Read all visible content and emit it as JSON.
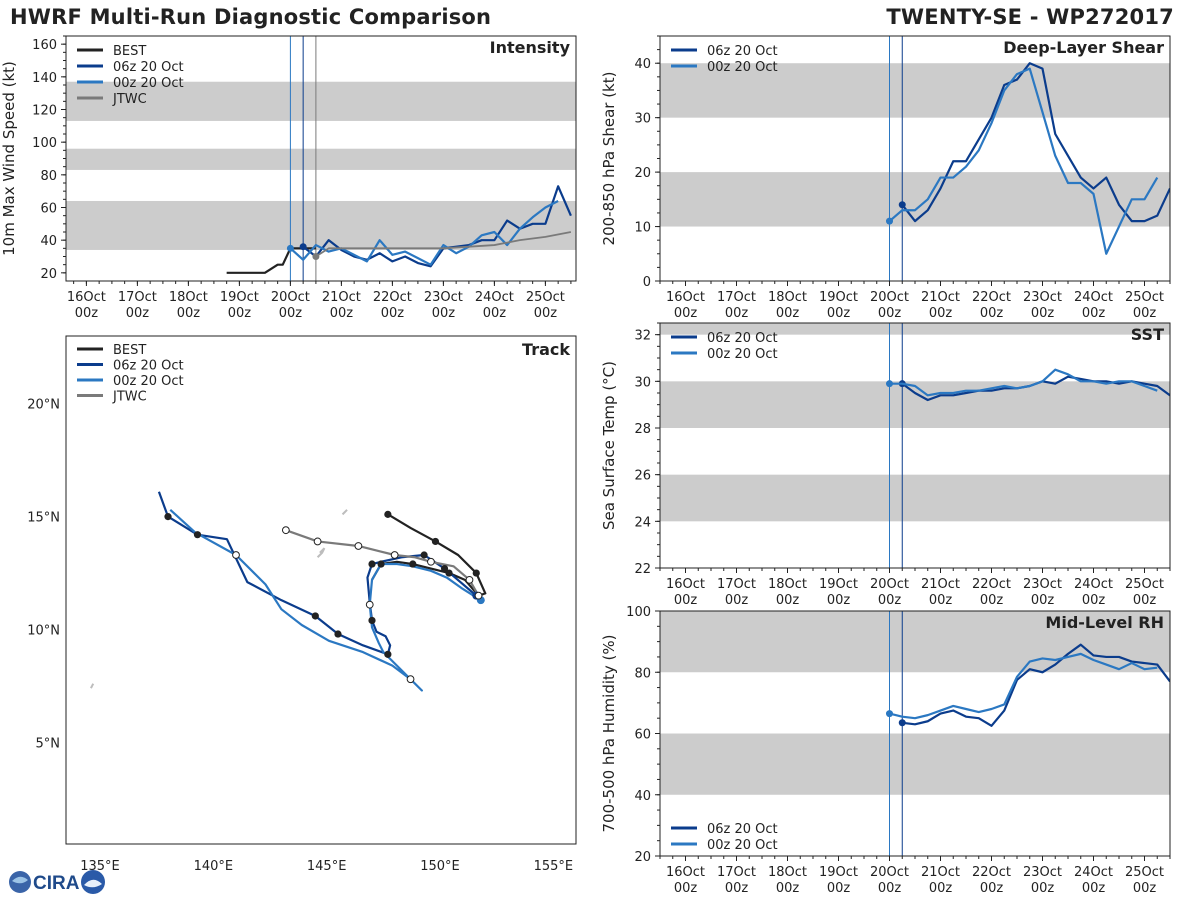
{
  "header": {
    "title_left": "HWRF Multi-Run Diagnostic Comparison",
    "title_right": "TWENTY-SE - WP272017",
    "logo_text": "CIRA"
  },
  "colors": {
    "best": "#222222",
    "run_06z": "#0b3c8c",
    "run_00z": "#2b78c2",
    "jtwc": "#7a7a7a",
    "band": "#cccccc",
    "land": "#bdbdbd"
  },
  "chart_data": [
    {
      "id": "intensity",
      "type": "line",
      "title": "Intensity",
      "ylabel": "10m Max Wind Speed (kt)",
      "xlim": [
        -0.4,
        9.6
      ],
      "ylim": [
        15,
        165
      ],
      "yticks": [
        20,
        40,
        60,
        80,
        100,
        120,
        140,
        160
      ],
      "xtick_positions": [
        0,
        1,
        2,
        3,
        4,
        5,
        6,
        7,
        8,
        9
      ],
      "xticks": [
        "16Oct\n00z",
        "17Oct\n00z",
        "18Oct\n00z",
        "19Oct\n00z",
        "20Oct\n00z",
        "21Oct\n00z",
        "22Oct\n00z",
        "23Oct\n00z",
        "24Oct\n00z",
        "25Oct\n00z"
      ],
      "bands": [
        [
          34,
          64
        ],
        [
          83,
          96
        ],
        [
          113,
          137
        ]
      ],
      "vlines": [
        {
          "x": 4.0,
          "series": "00z 20 Oct"
        },
        {
          "x": 4.25,
          "series": "06z 20 Oct"
        },
        {
          "x": 4.5,
          "series": "JTWC"
        }
      ],
      "legend": [
        "BEST",
        "06z 20 Oct",
        "00z 20 Oct",
        "JTWC"
      ],
      "series": [
        {
          "name": "BEST",
          "x": [
            2.75,
            3.0,
            3.25,
            3.5,
            3.75,
            3.85,
            4.0,
            4.25,
            4.5
          ],
          "values": [
            20,
            20,
            20,
            20,
            25,
            25,
            35,
            35,
            35
          ]
        },
        {
          "name": "06z 20 Oct",
          "x": [
            4.25,
            4.5,
            4.75,
            5.0,
            5.25,
            5.5,
            5.75,
            6.0,
            6.25,
            6.5,
            6.75,
            7.0,
            7.25,
            7.5,
            7.75,
            8.0,
            8.25,
            8.5,
            8.75,
            9.0,
            9.25,
            9.5
          ],
          "values": [
            36,
            30,
            40,
            34,
            30,
            28,
            32,
            27,
            30,
            26,
            24,
            35,
            36,
            37,
            40,
            40,
            52,
            47,
            50,
            50,
            73,
            55
          ]
        },
        {
          "name": "00z 20 Oct",
          "x": [
            4.0,
            4.25,
            4.5,
            4.75,
            5.0,
            5.25,
            5.5,
            5.75,
            6.0,
            6.25,
            6.5,
            6.75,
            7.0,
            7.25,
            7.5,
            7.75,
            8.0,
            8.25,
            8.5,
            8.75,
            9.0,
            9.25
          ],
          "values": [
            35,
            28,
            37,
            33,
            35,
            31,
            27,
            40,
            31,
            33,
            29,
            25,
            37,
            32,
            36,
            43,
            45,
            37,
            47,
            54,
            60,
            64
          ]
        },
        {
          "name": "JTWC",
          "x": [
            4.5,
            4.75,
            5.0,
            7.0,
            7.5,
            8.0,
            8.5,
            9.0,
            9.5
          ],
          "values": [
            30,
            35,
            35,
            35,
            36,
            37,
            40,
            42,
            45
          ]
        }
      ]
    },
    {
      "id": "track",
      "type": "scatter",
      "title": "Track",
      "xlim": [
        133.5,
        156
      ],
      "ylim": [
        0.5,
        23
      ],
      "xticks": [
        135,
        140,
        145,
        150,
        155
      ],
      "xtick_labels": [
        "135°E",
        "140°E",
        "145°E",
        "150°E",
        "155°E"
      ],
      "yticks": [
        5,
        10,
        15,
        20
      ],
      "ytick_labels": [
        "5°N",
        "10°N",
        "15°N",
        "20°N"
      ],
      "legend": [
        "BEST",
        "06z 20 Oct",
        "00z 20 Oct",
        "JTWC"
      ],
      "series": [
        {
          "name": "BEST",
          "lon": [
            147.7,
            148.7,
            149.8,
            150.8,
            151.6,
            152.0,
            151.7,
            151.1,
            150.4,
            149.6,
            148.8,
            148.1,
            147.4,
            147.0
          ],
          "lat": [
            15.1,
            14.5,
            13.9,
            13.3,
            12.5,
            11.6,
            11.5,
            12.2,
            12.5,
            12.7,
            12.9,
            13.0,
            12.9,
            12.2
          ],
          "markers": "filled-every-other"
        },
        {
          "name": "06z 20 Oct",
          "lon": [
            151.6,
            150.9,
            150.2,
            149.3,
            148.3,
            147.4,
            147.0,
            146.8,
            146.9,
            147.0,
            147.2,
            147.6,
            147.8,
            147.7,
            146.6,
            145.5,
            144.5,
            143.0,
            141.5,
            140.6,
            139.3,
            138.0,
            137.6
          ],
          "lat": [
            11.5,
            12.1,
            12.7,
            13.3,
            13.2,
            13.0,
            12.9,
            12.3,
            11.2,
            10.4,
            9.9,
            9.7,
            9.3,
            8.9,
            9.3,
            9.8,
            10.6,
            11.3,
            12.1,
            14.0,
            14.2,
            15.0,
            16.1
          ],
          "filled_idx": [
            2,
            3,
            6,
            9,
            13,
            15,
            16,
            20,
            21
          ]
        },
        {
          "name": "00z 20 Oct",
          "lon": [
            151.8,
            151.0,
            150.3,
            149.6,
            148.8,
            148.1,
            147.4,
            147.0,
            146.9,
            147.0,
            147.3,
            147.5,
            147.8,
            149.2,
            148.7,
            147.9,
            146.6,
            145.1,
            143.9,
            143.0,
            142.3,
            141.0,
            139.2,
            138.1
          ],
          "lat": [
            11.3,
            11.8,
            12.3,
            12.6,
            12.8,
            12.9,
            12.9,
            12.2,
            11.1,
            10.1,
            9.4,
            9.0,
            8.7,
            7.3,
            7.8,
            8.4,
            9.0,
            9.5,
            10.2,
            10.9,
            12.0,
            13.3,
            14.3,
            15.3
          ],
          "open_idx": [
            8,
            14,
            21
          ]
        },
        {
          "name": "JTWC",
          "lon": [
            151.7,
            151.3,
            150.6,
            149.6,
            148.9,
            148.0,
            146.4,
            144.6,
            143.2
          ],
          "lat": [
            11.5,
            12.2,
            12.8,
            13.0,
            13.2,
            13.3,
            13.7,
            13.9,
            14.4
          ],
          "open_idx": [
            0,
            1,
            3,
            5,
            6,
            7,
            8
          ]
        }
      ],
      "land": [
        {
          "name": "guam-area",
          "lon": [
            144.6,
            144.8,
            144.9,
            144.7
          ],
          "lat": [
            13.2,
            13.4,
            13.6,
            13.4
          ]
        },
        {
          "name": "saipan-area",
          "lon": [
            145.7,
            145.8,
            145.9
          ],
          "lat": [
            15.1,
            15.2,
            15.3
          ]
        },
        {
          "name": "west-islet",
          "lon": [
            134.6,
            134.7
          ],
          "lat": [
            7.4,
            7.6
          ]
        }
      ]
    },
    {
      "id": "shear",
      "type": "line",
      "title": "Deep-Layer Shear",
      "ylabel": "200-850 hPa Shear (kt)",
      "xlim": [
        -0.5,
        9.5
      ],
      "ylim": [
        0,
        45
      ],
      "yticks": [
        0,
        10,
        20,
        30,
        40
      ],
      "xtick_positions": [
        0,
        1,
        2,
        3,
        4,
        5,
        6,
        7,
        8,
        9
      ],
      "xticks": [
        "16Oct\n00z",
        "17Oct\n00z",
        "18Oct\n00z",
        "19Oct\n00z",
        "20Oct\n00z",
        "21Oct\n00z",
        "22Oct\n00z",
        "23Oct\n00z",
        "24Oct\n00z",
        "25Oct\n00z"
      ],
      "bands": [
        [
          10,
          20
        ],
        [
          30,
          40
        ]
      ],
      "vlines": [
        {
          "x": 4.0,
          "series": "00z 20 Oct"
        },
        {
          "x": 4.25,
          "series": "06z 20 Oct"
        }
      ],
      "legend": [
        "06z 20 Oct",
        "00z 20 Oct"
      ],
      "series": [
        {
          "name": "06z 20 Oct",
          "x": [
            4.25,
            4.5,
            4.75,
            5.0,
            5.25,
            5.5,
            5.75,
            6.0,
            6.25,
            6.5,
            6.75,
            7.0,
            7.25,
            7.5,
            7.75,
            8.0,
            8.25,
            8.5,
            8.75,
            9.0,
            9.25,
            9.5
          ],
          "values": [
            14,
            11,
            13,
            17,
            22,
            22,
            26,
            30,
            36,
            37,
            40,
            39,
            27,
            23,
            19,
            17,
            19,
            14,
            11,
            11,
            12,
            17
          ]
        },
        {
          "name": "00z 20 Oct",
          "x": [
            4.0,
            4.25,
            4.5,
            4.75,
            5.0,
            5.25,
            5.5,
            5.75,
            6.0,
            6.25,
            6.5,
            6.75,
            7.0,
            7.25,
            7.5,
            7.75,
            8.0,
            8.25,
            8.5,
            8.75,
            9.0,
            9.25
          ],
          "values": [
            11,
            13,
            13,
            15,
            19,
            19,
            21,
            24,
            29,
            35,
            38,
            39,
            31,
            23,
            18,
            18,
            16,
            5,
            10,
            15,
            15,
            19
          ]
        }
      ]
    },
    {
      "id": "sst",
      "type": "line",
      "title": "SST",
      "ylabel": "Sea Surface Temp (°C)",
      "xlim": [
        -0.5,
        9.5
      ],
      "ylim": [
        22,
        32.5
      ],
      "yticks": [
        22,
        24,
        26,
        28,
        30,
        32
      ],
      "xtick_positions": [
        0,
        1,
        2,
        3,
        4,
        5,
        6,
        7,
        8,
        9
      ],
      "xticks": [
        "16Oct\n00z",
        "17Oct\n00z",
        "18Oct\n00z",
        "19Oct\n00z",
        "20Oct\n00z",
        "21Oct\n00z",
        "22Oct\n00z",
        "23Oct\n00z",
        "24Oct\n00z",
        "25Oct\n00z"
      ],
      "bands": [
        [
          24,
          26
        ],
        [
          28,
          30
        ],
        [
          32,
          32.5
        ]
      ],
      "vlines": [
        {
          "x": 4.0,
          "series": "00z 20 Oct"
        },
        {
          "x": 4.25,
          "series": "06z 20 Oct"
        }
      ],
      "legend": [
        "06z 20 Oct",
        "00z 20 Oct"
      ],
      "series": [
        {
          "name": "06z 20 Oct",
          "x": [
            4.25,
            4.5,
            4.75,
            5.0,
            5.25,
            5.5,
            5.75,
            6.0,
            6.25,
            6.5,
            6.75,
            7.0,
            7.25,
            7.5,
            7.75,
            8.0,
            8.25,
            8.5,
            8.75,
            9.0,
            9.25,
            9.5
          ],
          "values": [
            29.9,
            29.5,
            29.2,
            29.4,
            29.4,
            29.5,
            29.6,
            29.6,
            29.7,
            29.7,
            29.8,
            30.0,
            29.9,
            30.2,
            30.1,
            30.0,
            30.0,
            29.9,
            30.0,
            29.9,
            29.8,
            29.4
          ]
        },
        {
          "name": "00z 20 Oct",
          "x": [
            4.0,
            4.25,
            4.5,
            4.75,
            5.0,
            5.25,
            5.5,
            5.75,
            6.0,
            6.25,
            6.5,
            6.75,
            7.0,
            7.25,
            7.5,
            7.75,
            8.0,
            8.25,
            8.5,
            8.75,
            9.0,
            9.25
          ],
          "values": [
            29.9,
            29.9,
            29.8,
            29.4,
            29.5,
            29.5,
            29.6,
            29.6,
            29.7,
            29.8,
            29.7,
            29.8,
            30.0,
            30.5,
            30.3,
            30.0,
            30.0,
            29.9,
            30.0,
            30.0,
            29.8,
            29.6
          ]
        }
      ]
    },
    {
      "id": "rh",
      "type": "line",
      "title": "Mid-Level RH",
      "ylabel": "700-500 hPa Humidity (%)",
      "xlim": [
        -0.5,
        9.5
      ],
      "ylim": [
        20,
        100
      ],
      "yticks": [
        20,
        40,
        60,
        80,
        100
      ],
      "xtick_positions": [
        0,
        1,
        2,
        3,
        4,
        5,
        6,
        7,
        8,
        9
      ],
      "xticks": [
        "16Oct\n00z",
        "17Oct\n00z",
        "18Oct\n00z",
        "19Oct\n00z",
        "20Oct\n00z",
        "21Oct\n00z",
        "22Oct\n00z",
        "23Oct\n00z",
        "24Oct\n00z",
        "25Oct\n00z"
      ],
      "bands": [
        [
          40,
          60
        ],
        [
          80,
          100
        ]
      ],
      "vlines": [
        {
          "x": 4.0,
          "series": "00z 20 Oct"
        },
        {
          "x": 4.25,
          "series": "06z 20 Oct"
        }
      ],
      "legend": [
        "06z 20 Oct",
        "00z 20 Oct"
      ],
      "series": [
        {
          "name": "06z 20 Oct",
          "x": [
            4.25,
            4.5,
            4.75,
            5.0,
            5.25,
            5.5,
            5.75,
            6.0,
            6.25,
            6.5,
            6.75,
            7.0,
            7.25,
            7.5,
            7.75,
            8.0,
            8.25,
            8.5,
            8.75,
            9.0,
            9.25,
            9.5
          ],
          "values": [
            63.5,
            63,
            64,
            66.5,
            67.5,
            65.5,
            65,
            62.5,
            67.5,
            77.5,
            81,
            80,
            82.5,
            86,
            89,
            85.5,
            85,
            85,
            83.5,
            83,
            82.5,
            77
          ]
        },
        {
          "name": "00z 20 Oct",
          "x": [
            4.0,
            4.25,
            4.5,
            4.75,
            5.0,
            5.25,
            5.5,
            5.75,
            6.0,
            6.25,
            6.5,
            6.75,
            7.0,
            7.25,
            7.5,
            7.75,
            8.0,
            8.25,
            8.5,
            8.75,
            9.0,
            9.25
          ],
          "values": [
            66.5,
            65.5,
            65,
            66,
            67.5,
            69,
            68,
            67,
            68,
            69.5,
            78.5,
            83.5,
            84.5,
            84,
            85,
            86,
            84,
            82.5,
            81,
            83,
            81,
            81.5
          ]
        }
      ]
    }
  ]
}
